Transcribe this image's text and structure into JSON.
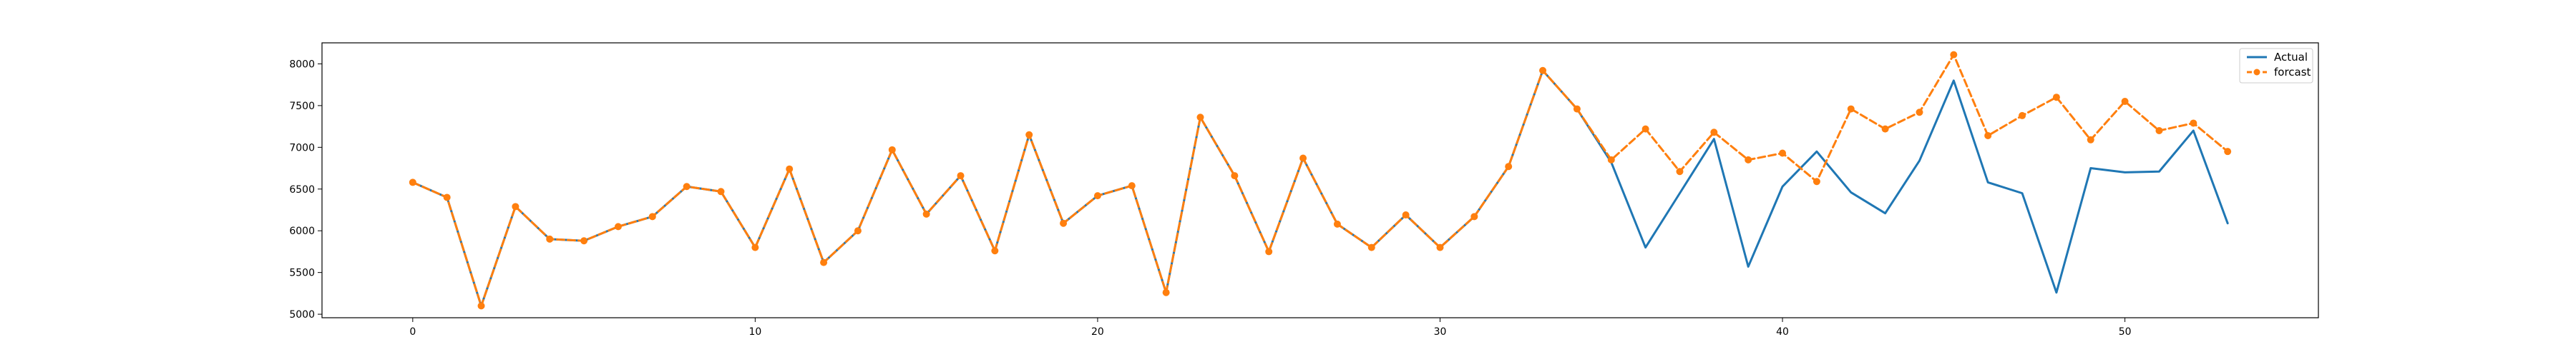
{
  "chart_data": {
    "type": "line",
    "x": [
      0,
      1,
      2,
      3,
      4,
      5,
      6,
      7,
      8,
      9,
      10,
      11,
      12,
      13,
      14,
      15,
      16,
      17,
      18,
      19,
      20,
      21,
      22,
      23,
      24,
      25,
      26,
      27,
      28,
      29,
      30,
      31,
      32,
      33,
      34,
      35,
      36,
      37,
      38,
      39,
      40,
      41,
      42,
      43,
      44,
      45,
      46,
      47,
      48,
      49,
      50,
      51,
      52,
      53
    ],
    "series": [
      {
        "name": "Actual",
        "color": "#1f77b4",
        "style": "solid",
        "values": [
          6580,
          6400,
          5100,
          6290,
          5900,
          5880,
          6050,
          6170,
          6530,
          6470,
          5800,
          6740,
          5620,
          6000,
          6970,
          6200,
          6660,
          5760,
          7150,
          6090,
          6420,
          6540,
          5260,
          7360,
          6660,
          5750,
          6870,
          6080,
          5800,
          6190,
          5800,
          6170,
          6770,
          7920,
          7460,
          6820,
          5800,
          6450,
          7100,
          5570,
          6530,
          6950,
          6460,
          6210,
          6840,
          7800,
          6580,
          6450,
          5260,
          6750,
          6700,
          6710,
          7200,
          6090
        ]
      },
      {
        "name": "forcast",
        "color": "#ff7f0e",
        "style": "dashed",
        "marker": "circle",
        "values": [
          6580,
          6400,
          5100,
          6290,
          5900,
          5880,
          6050,
          6170,
          6530,
          6470,
          5800,
          6740,
          5620,
          6000,
          6970,
          6200,
          6660,
          5760,
          7150,
          6090,
          6420,
          6540,
          5260,
          7360,
          6660,
          5750,
          6870,
          6080,
          5800,
          6190,
          5800,
          6170,
          6770,
          7920,
          7460,
          6850,
          7220,
          6710,
          7180,
          6850,
          6930,
          6590,
          7460,
          7220,
          7420,
          8110,
          7140,
          7380,
          7600,
          7090,
          7550,
          7200,
          7290,
          6950
        ]
      }
    ],
    "xticks": [
      0,
      10,
      20,
      30,
      40,
      50
    ],
    "yticks": [
      5000,
      5500,
      6000,
      6500,
      7000,
      7500,
      8000
    ],
    "xlim": [
      -2.65,
      55.65
    ],
    "ylim": [
      4958,
      8252
    ],
    "legend_position": "top-right",
    "grid": false,
    "title": "",
    "xlabel": "",
    "ylabel": ""
  }
}
